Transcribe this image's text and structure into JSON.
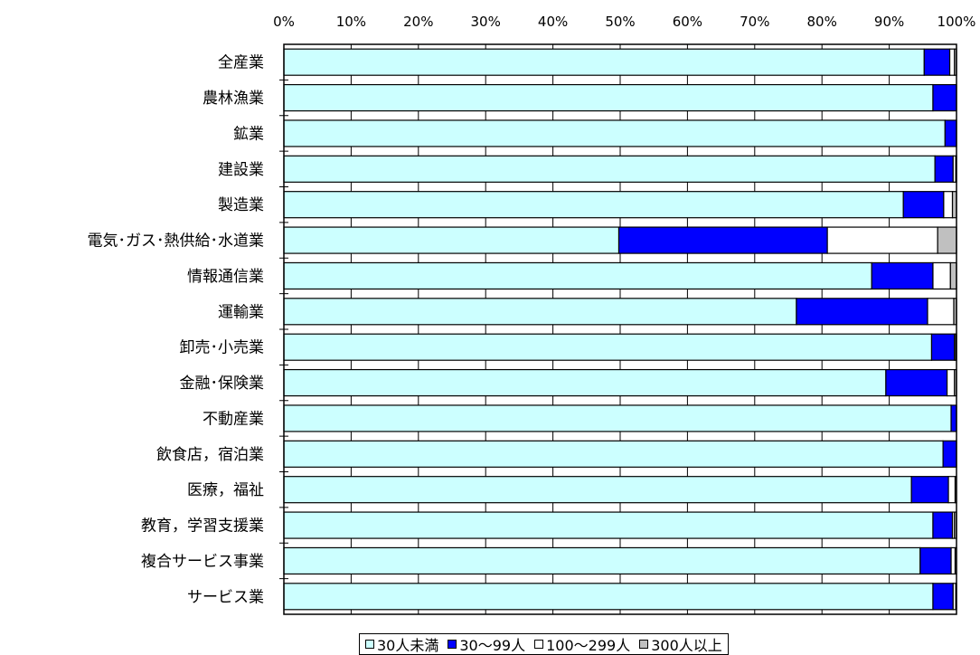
{
  "chart_data": {
    "type": "bar",
    "orientation": "horizontal",
    "stacked": "percent",
    "xlim": [
      0,
      100
    ],
    "tick_labels": [
      "0%",
      "10%",
      "20%",
      "30%",
      "40%",
      "50%",
      "60%",
      "70%",
      "80%",
      "90%",
      "100%"
    ],
    "grid": true,
    "legend": "bottom",
    "categories": [
      "全産業",
      "農林漁業",
      "鉱業",
      "建設業",
      "製造業",
      "電気･ガス･熱供給･水道業",
      "情報通信業",
      "運輸業",
      "卸売･小売業",
      "金融･保険業",
      "不動産業",
      "飲食店，宿泊業",
      "医療，福祉",
      "教育，学習支援業",
      "複合サービス事業",
      "サービス業"
    ],
    "series": [
      {
        "name": "30人未満",
        "color": "#ccffff",
        "values": [
          95.2,
          96.5,
          98.3,
          96.8,
          92.1,
          49.8,
          87.4,
          76.2,
          96.3,
          89.5,
          99.2,
          98.0,
          93.3,
          96.5,
          94.6,
          96.5
        ]
      },
      {
        "name": "30～99人",
        "color": "#0000ff",
        "values": [
          3.8,
          3.5,
          1.7,
          2.7,
          6.0,
          31.0,
          9.1,
          19.5,
          3.4,
          9.1,
          0.8,
          2.0,
          5.5,
          2.9,
          4.6,
          3.0
        ]
      },
      {
        "name": "100～299人",
        "color": "#ffffff",
        "values": [
          0.7,
          0.0,
          0.0,
          0.4,
          1.3,
          16.4,
          2.6,
          3.9,
          0.2,
          1.1,
          0.0,
          0.0,
          1.0,
          0.3,
          0.6,
          0.4
        ]
      },
      {
        "name": "300人以上",
        "color": "#c0c0c0",
        "values": [
          0.3,
          0.0,
          0.0,
          0.1,
          0.6,
          2.8,
          0.9,
          0.4,
          0.1,
          0.3,
          0.0,
          0.0,
          0.2,
          0.3,
          0.2,
          0.1
        ]
      }
    ]
  }
}
